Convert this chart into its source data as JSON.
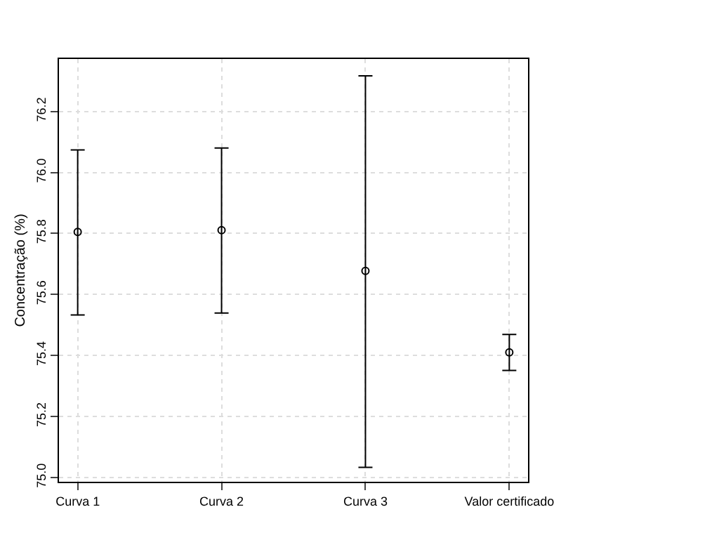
{
  "chart_data": {
    "type": "scatter",
    "ylabel": "Concentração (%)",
    "categories": [
      "Curva 1",
      "Curva 2",
      "Curva 3",
      "Valor certificado"
    ],
    "series": [
      {
        "color": "#000000",
        "values": [
          75.805,
          75.811,
          75.677,
          75.41
        ],
        "errors": [
          [
            75.533,
            76.074
          ],
          [
            75.539,
            76.08
          ],
          [
            75.033,
            76.317
          ],
          [
            75.351,
            75.469
          ]
        ]
      }
    ],
    "ylim": [
      74.986,
      76.372
    ],
    "yticks": [
      {
        "value": 75.0,
        "label": "75.0"
      },
      {
        "value": 75.2,
        "label": "75.2"
      },
      {
        "value": 75.4,
        "label": "75.4"
      },
      {
        "value": 75.6,
        "label": "75.6"
      },
      {
        "value": 75.8,
        "label": "75.8"
      },
      {
        "value": 76.0,
        "label": "76.0"
      },
      {
        "value": 76.2,
        "label": "76.2"
      }
    ],
    "grid": true,
    "marker": "circle"
  }
}
